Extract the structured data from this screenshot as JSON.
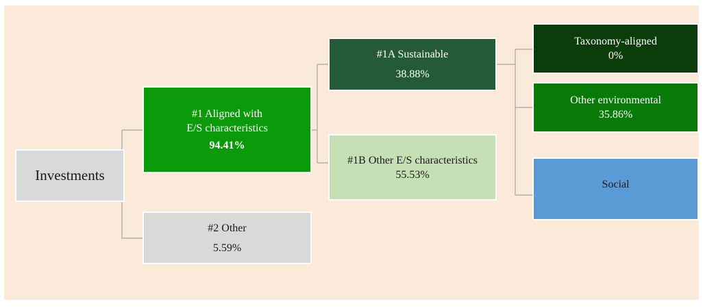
{
  "nodes": [
    {
      "lines": [
        "Investments"
      ]
    },
    {
      "lines": [
        "#1 Aligned with",
        "E/S characteristics",
        "94.41%"
      ]
    },
    {
      "lines": [
        "#2 Other",
        "5.59%"
      ]
    },
    {
      "lines": [
        "#1A Sustainable",
        "38.88%"
      ]
    },
    {
      "lines": [
        "#1B Other E/S characteristics",
        "55.53%"
      ]
    },
    {
      "lines": [
        "Taxonomy-aligned",
        "0%"
      ]
    },
    {
      "lines": [
        "Other environmental",
        "35.86%"
      ]
    },
    {
      "lines": [
        "Social"
      ]
    }
  ]
}
